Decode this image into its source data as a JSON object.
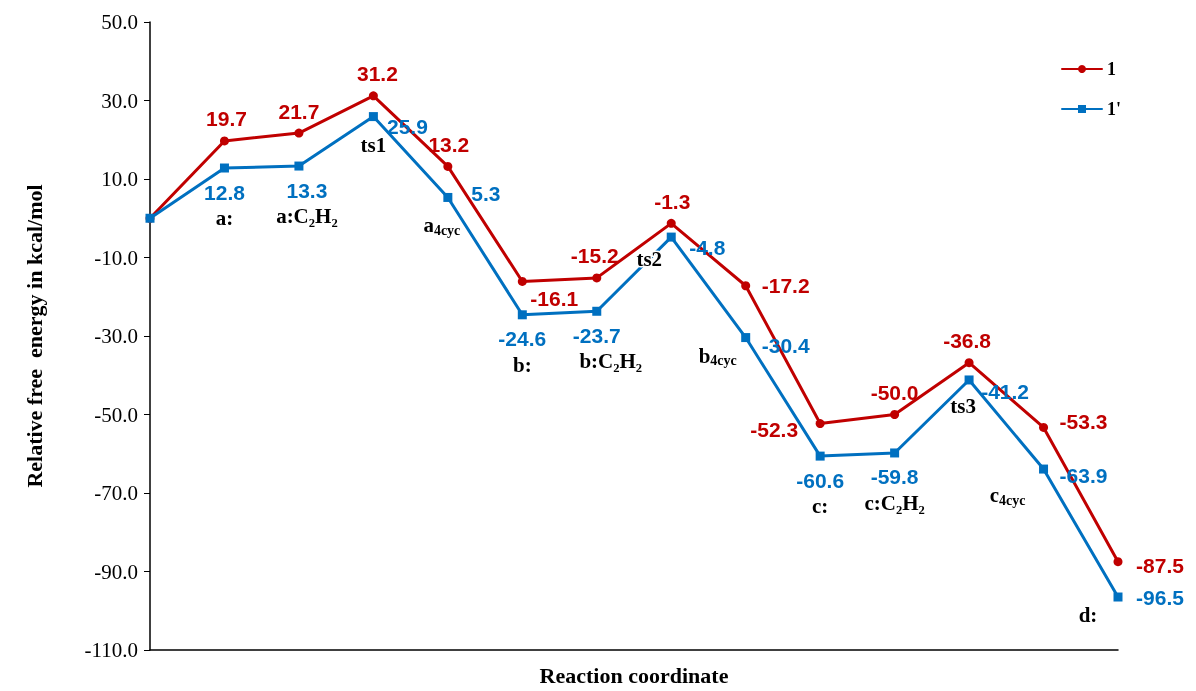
{
  "chart_data": {
    "type": "line",
    "xlabel": "Reaction coordinate",
    "ylabel": "Relative free  energy in kcal/mol",
    "categories": [
      null,
      null,
      null,
      null,
      null,
      null,
      null,
      null,
      null,
      null,
      null,
      null,
      null,
      null
    ],
    "series": [
      {
        "name": "1",
        "color": "#c00000",
        "marker": "circle",
        "values": [
          0.0,
          19.7,
          21.7,
          31.2,
          13.2,
          -16.1,
          -15.2,
          -1.3,
          -17.2,
          -52.3,
          -50.0,
          -36.8,
          -53.3,
          -87.5
        ],
        "value_labels": [
          null,
          "19.7",
          "21.7",
          "31.2",
          "13.2",
          "-16.1",
          "-15.2",
          "-1.3",
          "-17.2",
          "-52.3",
          "-50.0",
          "-36.8",
          "-53.3",
          "-87.5"
        ]
      },
      {
        "name": "1'",
        "color": "#0070c0",
        "marker": "square",
        "values": [
          0.0,
          12.8,
          13.3,
          25.9,
          5.3,
          -24.6,
          -23.7,
          -4.8,
          -30.4,
          -60.6,
          -59.8,
          -41.2,
          -63.9,
          -96.5
        ],
        "value_labels": [
          null,
          "12.8",
          "13.3",
          "25.9",
          "5.3",
          "-24.6",
          "-23.7",
          "-4.8",
          "-30.4",
          "-60.6",
          "-59.8",
          "-41.2",
          "-63.9",
          "-96.5"
        ]
      }
    ],
    "annotations": [
      "a:",
      "a:C₂H₂",
      "ts1",
      "a$_{4cyc}$",
      "b:",
      "b:C₂H₂",
      "ts2",
      "b$_{4cyc}$",
      "c:",
      "c:C₂H₂",
      "ts3",
      "c$_{4cyc}$",
      "d:"
    ],
    "ylim": [
      -110,
      50
    ],
    "yticks": [
      {
        "value": -110,
        "label": "-110.0"
      },
      {
        "value": -90,
        "label": "-90.0"
      },
      {
        "value": -70,
        "label": "-70.0"
      },
      {
        "value": -50,
        "label": "-50.0"
      },
      {
        "value": -30,
        "label": "-30.0"
      },
      {
        "value": -10,
        "label": "-10.0"
      },
      {
        "value": 10,
        "label": "10.0"
      },
      {
        "value": 30,
        "label": "30.0"
      },
      {
        "value": 50,
        "label": "50.0"
      }
    ],
    "tick_labels": "y",
    "grid": false,
    "legend": "top right",
    "line_style": "solid"
  }
}
